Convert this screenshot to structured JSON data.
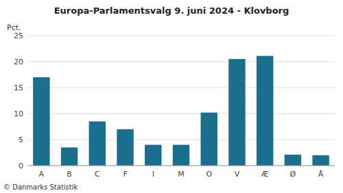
{
  "chart_data": {
    "type": "bar",
    "title": "Europa-Parlamentsvalg 9. juni 2024 - Klovborg",
    "categories": [
      "A",
      "B",
      "C",
      "F",
      "I",
      "M",
      "O",
      "V",
      "Æ",
      "Ø",
      "Å"
    ],
    "values": [
      17.0,
      3.5,
      8.5,
      7.0,
      4.0,
      4.0,
      10.2,
      20.5,
      21.1,
      2.1,
      2.0
    ],
    "color": "#1a6e8e",
    "ylabel": "Pct.",
    "ylim": [
      0,
      25
    ],
    "yticks": [
      0,
      5,
      10,
      15,
      20,
      25
    ],
    "grid": true,
    "annotations": [
      "© Danmarks Statistik"
    ]
  }
}
